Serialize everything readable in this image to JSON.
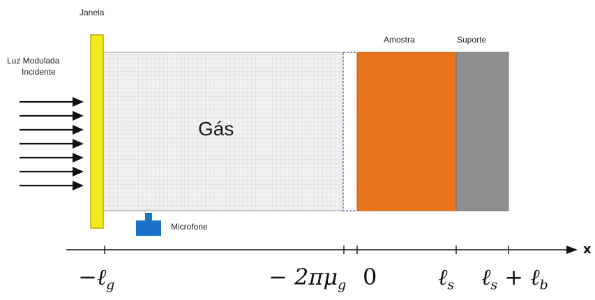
{
  "labels": {
    "window": "Janela",
    "incident_light_line1": "Luz Modulada",
    "incident_light_line2": "Incidente",
    "gas": "Gás",
    "sample": "Amostra",
    "support": "Suporte",
    "microphone": "Microfone",
    "axis_x": "x"
  },
  "axis_ticks": {
    "neg_lg": {
      "prefix": "−ℓ",
      "sub": "g"
    },
    "neg_2pi_mu": {
      "prefix": "− 2πμ",
      "sub": "g"
    },
    "zero": {
      "text": "0"
    },
    "ls": {
      "prefix": "ℓ",
      "sub": "s"
    },
    "ls_plus_lb": {
      "prefix": "ℓ",
      "sub1": "s",
      "mid": " + ℓ",
      "sub2": "b"
    }
  },
  "colors": {
    "window": "#f2ec1c",
    "window_border": "#b9a90a",
    "sample": "#e8731a",
    "support": "#8f8f8f",
    "gas_fill": "#f1f1f1",
    "gas_grid": "#d6d6d6",
    "microphone": "#1a73c8",
    "boundary_dash": "#3a4fb0",
    "arrows": "#111111"
  },
  "icons": {
    "microphone": "microphone-icon",
    "incident_arrow": "arrow-right-icon"
  },
  "incident_arrow_count": 7
}
